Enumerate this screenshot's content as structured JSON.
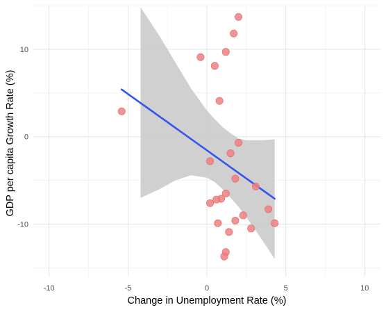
{
  "chart_data": {
    "type": "scatter",
    "title": "",
    "xlabel": "Change in Unemployment Rate (%)",
    "ylabel": "GDP per capita Growth Rate (%)",
    "xlim": [
      -11,
      11
    ],
    "ylim": [
      -16,
      15
    ],
    "x_ticks": [
      -10,
      -5,
      0,
      5,
      10
    ],
    "y_ticks": [
      -10,
      0,
      10
    ],
    "x_tick_labels": [
      "-10",
      "-5",
      "0",
      "5",
      "10"
    ],
    "y_tick_labels": [
      "-10",
      "0",
      "10"
    ],
    "grid": true,
    "legend": "none",
    "point_color": "#f08080",
    "line_color": "#3355ee",
    "band_color": "#c8c8c8",
    "points": [
      {
        "x": -5.4,
        "y": 2.9
      },
      {
        "x": -0.4,
        "y": 9.1
      },
      {
        "x": 0.5,
        "y": 8.1
      },
      {
        "x": 0.8,
        "y": 4.1
      },
      {
        "x": 1.2,
        "y": 9.7
      },
      {
        "x": 1.7,
        "y": 11.8
      },
      {
        "x": 2.0,
        "y": 13.7
      },
      {
        "x": 2.0,
        "y": -0.7
      },
      {
        "x": 1.5,
        "y": -1.9
      },
      {
        "x": 0.2,
        "y": -2.8
      },
      {
        "x": 1.8,
        "y": -4.8
      },
      {
        "x": 3.1,
        "y": -5.7
      },
      {
        "x": 1.2,
        "y": -6.5
      },
      {
        "x": 0.9,
        "y": -7.1
      },
      {
        "x": 0.6,
        "y": -7.2
      },
      {
        "x": 0.2,
        "y": -7.6
      },
      {
        "x": 3.9,
        "y": -8.3
      },
      {
        "x": 2.3,
        "y": -9.0
      },
      {
        "x": 1.8,
        "y": -9.6
      },
      {
        "x": 0.7,
        "y": -9.9
      },
      {
        "x": 4.3,
        "y": -9.9
      },
      {
        "x": 2.8,
        "y": -10.5
      },
      {
        "x": 1.4,
        "y": -10.9
      },
      {
        "x": 1.2,
        "y": -13.2
      },
      {
        "x": 1.1,
        "y": -13.7
      }
    ],
    "fit_line": {
      "x": [
        -5.4,
        4.3
      ],
      "y": [
        5.4,
        -7.1
      ]
    },
    "confidence_band": {
      "x": [
        -4.2,
        -3.0,
        -2.0,
        -1.0,
        0.0,
        0.5,
        1.0,
        1.5,
        2.0,
        2.5,
        3.0,
        3.5,
        4.3
      ],
      "upper": [
        14.8,
        11.5,
        8.5,
        5.5,
        3.0,
        2.0,
        1.1,
        0.4,
        -0.2,
        -0.4,
        -0.4,
        -0.4,
        -0.3
      ],
      "lower": [
        -7.0,
        -6.0,
        -5.0,
        -4.4,
        -4.7,
        -5.2,
        -6.0,
        -7.0,
        -8.0,
        -9.2,
        -10.5,
        -11.8,
        -14.0
      ]
    }
  }
}
